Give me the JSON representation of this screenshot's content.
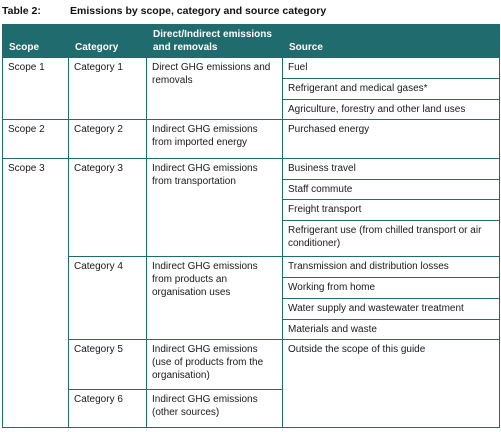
{
  "caption": {
    "number": "Table 2:",
    "title": "Emissions by scope, category and source category"
  },
  "headers": {
    "scope": "Scope",
    "category": "Category",
    "direct": "Direct/Indirect emissions and removals",
    "source": "Source"
  },
  "scopes": {
    "s1": "Scope 1",
    "s2": "Scope 2",
    "s3": "Scope 3"
  },
  "categories": {
    "c1": "Category 1",
    "c2": "Category 2",
    "c3": "Category 3",
    "c4": "Category 4",
    "c5": "Category 5",
    "c6": "Category 6"
  },
  "direct": {
    "c1": "Direct GHG emissions and removals",
    "c2": "Indirect GHG emissions from imported energy",
    "c3": "Indirect GHG emissions from transportation",
    "c4": "Indirect GHG emissions from products an organisation uses",
    "c5": "Indirect GHG emissions (use of products from the organisation)",
    "c6": "Indirect GHG emissions (other sources)"
  },
  "sources": {
    "fuel": "Fuel",
    "refrigerant_medical": "Refrigerant and medical gases*",
    "agriculture": "Agriculture, forestry and other land uses",
    "purchased_energy": "Purchased energy",
    "business_travel": "Business travel",
    "staff_commute": "Staff commute",
    "freight": "Freight transport",
    "refrigerant_use": "Refrigerant use (from chilled transport or air conditioner)",
    "transmission": "Transmission and distribution losses",
    "wfh": "Working from home",
    "water": "Water supply and wastewater treatment",
    "materials": "Materials and waste",
    "outside": "Outside the scope of this guide"
  }
}
